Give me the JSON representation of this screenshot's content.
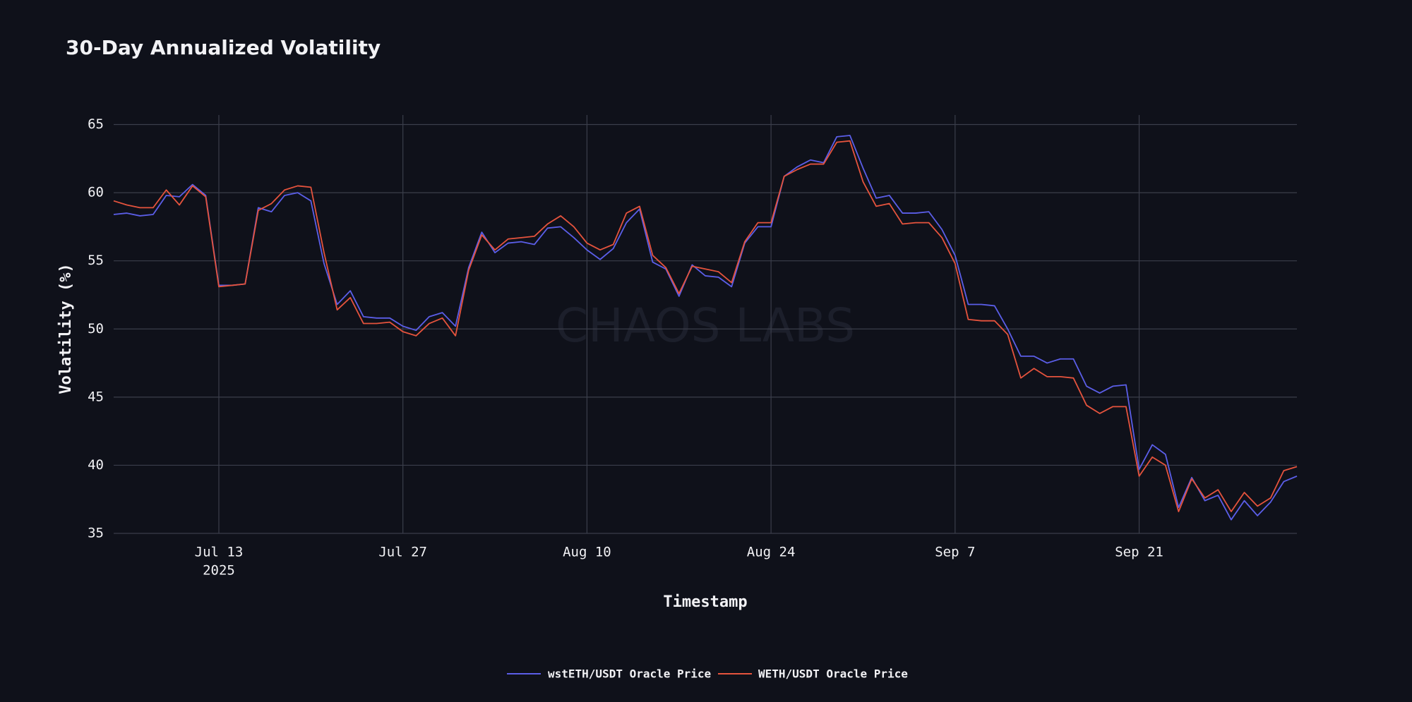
{
  "chart_data": {
    "type": "line",
    "title": "30-Day Annualized Volatility",
    "watermark": "CHAOS LABS",
    "xlabel": "Timestamp",
    "ylabel": "Volatility (%)",
    "x": [
      "2025-07-05",
      "2025-07-06",
      "2025-07-07",
      "2025-07-08",
      "2025-07-09",
      "2025-07-10",
      "2025-07-11",
      "2025-07-12",
      "2025-07-13",
      "2025-07-14",
      "2025-07-15",
      "2025-07-16",
      "2025-07-17",
      "2025-07-18",
      "2025-07-19",
      "2025-07-20",
      "2025-07-21",
      "2025-07-22",
      "2025-07-23",
      "2025-07-24",
      "2025-07-25",
      "2025-07-26",
      "2025-07-27",
      "2025-07-28",
      "2025-07-29",
      "2025-07-30",
      "2025-07-31",
      "2025-08-01",
      "2025-08-02",
      "2025-08-03",
      "2025-08-04",
      "2025-08-05",
      "2025-08-06",
      "2025-08-07",
      "2025-08-08",
      "2025-08-09",
      "2025-08-10",
      "2025-08-11",
      "2025-08-12",
      "2025-08-13",
      "2025-08-14",
      "2025-08-15",
      "2025-08-16",
      "2025-08-17",
      "2025-08-18",
      "2025-08-19",
      "2025-08-20",
      "2025-08-21",
      "2025-08-22",
      "2025-08-23",
      "2025-08-24",
      "2025-08-25",
      "2025-08-26",
      "2025-08-27",
      "2025-08-28",
      "2025-08-29",
      "2025-08-30",
      "2025-08-31",
      "2025-09-01",
      "2025-09-02",
      "2025-09-03",
      "2025-09-04",
      "2025-09-05",
      "2025-09-06",
      "2025-09-07",
      "2025-09-08",
      "2025-09-09",
      "2025-09-10",
      "2025-09-11",
      "2025-09-12",
      "2025-09-13",
      "2025-09-14",
      "2025-09-15",
      "2025-09-16",
      "2025-09-17",
      "2025-09-18",
      "2025-09-19",
      "2025-09-20",
      "2025-09-21",
      "2025-09-22",
      "2025-09-23",
      "2025-09-24",
      "2025-09-25",
      "2025-09-26",
      "2025-09-27",
      "2025-09-28",
      "2025-09-29",
      "2025-09-30",
      "2025-10-01",
      "2025-10-02",
      "2025-10-03"
    ],
    "series": [
      {
        "name": "wstETH/USDT Oracle Price",
        "color": "#5b5ee8",
        "values": [
          58.4,
          58.5,
          58.3,
          58.4,
          59.8,
          59.7,
          60.6,
          59.8,
          53.2,
          53.2,
          53.3,
          58.9,
          58.6,
          59.8,
          60.0,
          59.4,
          54.8,
          51.8,
          52.8,
          50.9,
          50.8,
          50.8,
          50.2,
          49.9,
          50.9,
          51.2,
          50.2,
          54.5,
          57.1,
          55.6,
          56.3,
          56.4,
          56.2,
          57.4,
          57.5,
          56.7,
          55.8,
          55.1,
          55.9,
          57.8,
          58.8,
          54.9,
          54.4,
          52.4,
          54.7,
          53.9,
          53.8,
          53.1,
          56.3,
          57.5,
          57.5,
          61.2,
          61.9,
          62.4,
          62.2,
          64.1,
          64.2,
          61.8,
          59.6,
          59.8,
          58.5,
          58.5,
          58.6,
          57.3,
          55.4,
          51.8,
          51.8,
          51.7,
          50.0,
          48.0,
          48.0,
          47.5,
          47.8,
          47.8,
          45.8,
          45.3,
          45.8,
          45.9,
          39.7,
          41.5,
          40.8,
          36.9,
          39.1,
          37.4,
          37.8,
          36.0,
          37.4,
          36.3,
          37.3,
          38.8,
          39.2
        ]
      },
      {
        "name": "WETH/USDT Oracle Price",
        "color": "#e5533d",
        "values": [
          59.4,
          59.1,
          58.9,
          58.9,
          60.2,
          59.1,
          60.5,
          59.7,
          53.1,
          53.2,
          53.3,
          58.7,
          59.2,
          60.2,
          60.5,
          60.4,
          55.6,
          51.4,
          52.3,
          50.4,
          50.4,
          50.5,
          49.8,
          49.5,
          50.4,
          50.8,
          49.5,
          54.3,
          56.9,
          55.8,
          56.6,
          56.7,
          56.8,
          57.7,
          58.3,
          57.5,
          56.3,
          55.8,
          56.2,
          58.5,
          59.0,
          55.4,
          54.5,
          52.6,
          54.6,
          54.4,
          54.2,
          53.4,
          56.4,
          57.8,
          57.8,
          61.2,
          61.7,
          62.1,
          62.1,
          63.7,
          63.8,
          60.8,
          59.0,
          59.2,
          57.7,
          57.8,
          57.8,
          56.7,
          54.8,
          50.7,
          50.6,
          50.6,
          49.6,
          46.4,
          47.1,
          46.5,
          46.5,
          46.4,
          44.4,
          43.8,
          44.3,
          44.3,
          39.2,
          40.6,
          40.0,
          36.6,
          39.0,
          37.6,
          38.2,
          36.6,
          38.0,
          37.0,
          37.6,
          39.6,
          39.9
        ]
      }
    ],
    "xlim": [
      "2025-07-05",
      "2025-10-03"
    ],
    "xticks": [
      {
        "value": "2025-07-13",
        "label": "Jul 13"
      },
      {
        "value": "2025-07-27",
        "label": "Jul 27"
      },
      {
        "value": "2025-08-10",
        "label": "Aug 10"
      },
      {
        "value": "2025-08-24",
        "label": "Aug 24"
      },
      {
        "value": "2025-09-07",
        "label": "Sep 7"
      },
      {
        "value": "2025-09-21",
        "label": "Sep 21"
      }
    ],
    "x_year": "2025",
    "ylim": [
      35,
      65.7
    ],
    "yticks": [
      35,
      40,
      45,
      50,
      55,
      60,
      65
    ],
    "grid": true,
    "legend": "bottom"
  }
}
